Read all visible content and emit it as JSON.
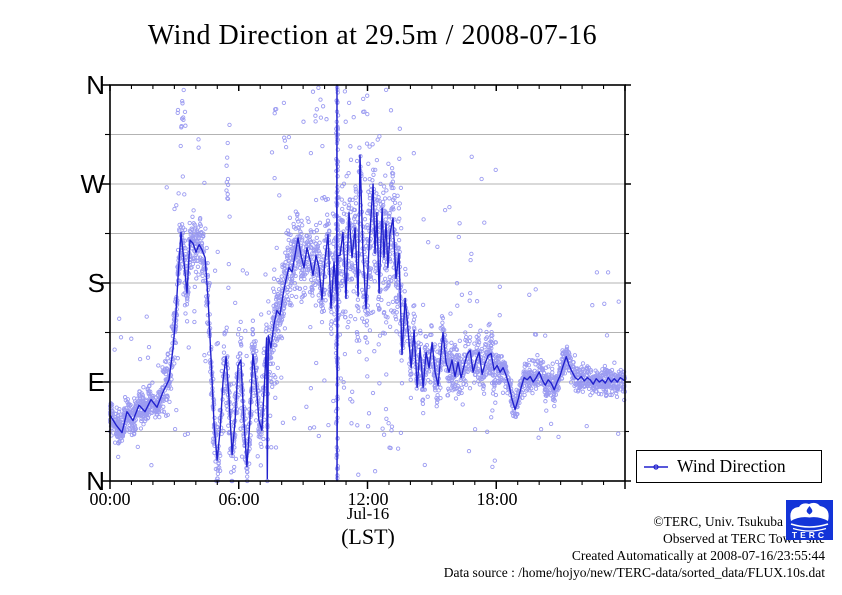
{
  "title": "Wind Direction at 29.5m / 2008-07-16",
  "colors": {
    "scatter": "#8b8bef",
    "mean_line": "#2121cd",
    "grid": "#b3b3b3",
    "axis": "#000000",
    "logo_blue": "#1334d8"
  },
  "axes": {
    "y": {
      "labels": [
        "N",
        "W",
        "S",
        "E",
        "N"
      ],
      "label_degrees": [
        360,
        270,
        180,
        90,
        0
      ],
      "minor_step_degrees": 45
    },
    "x": {
      "tick_labels": [
        "00:00",
        "06:00",
        "12:00",
        "18:00"
      ],
      "tick_hours": [
        0,
        6,
        12,
        18
      ],
      "minor_step_hours": 1,
      "range_hours": [
        0,
        24
      ],
      "date_label": "Jul-16",
      "unit_label": "(LST)"
    }
  },
  "legend": {
    "label": "Wind Direction"
  },
  "footer": {
    "line1": "©TERC, Univ. Tsukuba",
    "line2": "Observed at TERC Tower site",
    "line3": "Created Automatically at 2008-07-16/23:55:44",
    "line4": "Data source : /home/hojyo/new/TERC-data/sorted_data/FLUX.10s.dat"
  },
  "logo": {
    "text": "TERC"
  },
  "chart_data": {
    "type": "scatter",
    "title": "Wind Direction at 29.5m / 2008-07-16",
    "xlabel": "(LST)",
    "xlabel_date": "Jul-16",
    "xlim_hours": [
      0,
      24
    ],
    "ylim_degrees": [
      0,
      360
    ],
    "y_tick_labels": [
      "N",
      "W",
      "S",
      "E",
      "N"
    ],
    "grid": true,
    "grid_interval_degrees": 45,
    "legend_entries": [
      "Wind Direction"
    ],
    "legend_position": "outside-bottom-right",
    "series": [
      {
        "name": "Wind Direction 10s samples",
        "style": "open-circle-scatter",
        "approximation": "procedurally generated around mean line",
        "generation": {
          "seed": 42,
          "segments": [
            {
              "t0": 0.0,
              "t1": 2.5,
              "n": 420,
              "spread": 14,
              "outlier_frac": 0.05,
              "outlier_lo": 5,
              "outlier_hi": 160
            },
            {
              "t0": 2.5,
              "t1": 4.5,
              "n": 350,
              "spread": 26,
              "outlier_frac": 0.09,
              "outlier_lo": 20,
              "outlier_hi": 355
            },
            {
              "t0": 4.5,
              "t1": 7.5,
              "n": 520,
              "spread": 30,
              "outlier_frac": 0.08,
              "outlier_lo": 2,
              "outlier_hi": 210
            },
            {
              "t0": 7.5,
              "t1": 10.5,
              "n": 560,
              "spread": 32,
              "outlier_frac": 0.12,
              "outlier_lo": 30,
              "outlier_hi": 358
            },
            {
              "t0": 10.5,
              "t1": 13.6,
              "n": 640,
              "spread": 55,
              "outlier_frac": 0.16,
              "outlier_lo": 2,
              "outlier_hi": 358
            },
            {
              "t0": 13.6,
              "t1": 18.0,
              "n": 640,
              "spread": 24,
              "outlier_frac": 0.07,
              "outlier_lo": 10,
              "outlier_hi": 300
            },
            {
              "t0": 18.0,
              "t1": 24.0,
              "n": 760,
              "spread": 13,
              "outlier_frac": 0.035,
              "outlier_lo": 30,
              "outlier_hi": 200
            }
          ],
          "columns": [
            {
              "t": 10.58,
              "n": 100,
              "lo": 2,
              "hi": 358,
              "jitter": 0.05
            },
            {
              "t": 5.5,
              "n": 12,
              "lo": 240,
              "hi": 350,
              "jitter": 0.08
            },
            {
              "t": 3.42,
              "n": 9,
              "lo": 320,
              "hi": 356,
              "jitter": 0.1
            }
          ]
        }
      },
      {
        "name": "Wind Direction running mean",
        "style": "line",
        "points_hour_degree": [
          [
            0,
            60
          ],
          [
            0.28,
            51
          ],
          [
            0.56,
            44
          ],
          [
            0.79,
            63
          ],
          [
            1.07,
            55
          ],
          [
            1.35,
            69
          ],
          [
            1.63,
            63
          ],
          [
            1.91,
            74
          ],
          [
            2.19,
            67
          ],
          [
            2.47,
            81
          ],
          [
            2.75,
            92
          ],
          [
            2.94,
            121
          ],
          [
            3.08,
            155
          ],
          [
            3.17,
            185
          ],
          [
            3.31,
            226
          ],
          [
            3.45,
            199
          ],
          [
            3.59,
            171
          ],
          [
            3.73,
            219
          ],
          [
            3.87,
            216
          ],
          [
            4.01,
            208
          ],
          [
            4.15,
            215
          ],
          [
            4.29,
            210
          ],
          [
            4.43,
            203
          ],
          [
            4.57,
            165
          ],
          [
            4.71,
            110
          ],
          [
            4.85,
            51
          ],
          [
            4.99,
            19
          ],
          [
            5.13,
            46
          ],
          [
            5.27,
            92
          ],
          [
            5.41,
            113
          ],
          [
            5.55,
            74
          ],
          [
            5.69,
            24
          ],
          [
            5.83,
            55
          ],
          [
            5.97,
            105
          ],
          [
            6.1,
            110
          ],
          [
            6.24,
            55
          ],
          [
            6.38,
            13
          ],
          [
            6.52,
            55
          ],
          [
            6.66,
            115
          ],
          [
            6.8,
            92
          ],
          [
            6.94,
            55
          ],
          [
            7.08,
            46
          ],
          [
            7.22,
            96
          ],
          [
            7.3,
            130
          ],
          [
            7.33,
            2
          ],
          [
            7.38,
            132
          ],
          [
            7.5,
            121
          ],
          [
            7.64,
            142
          ],
          [
            7.78,
            155
          ],
          [
            7.92,
            151
          ],
          [
            8.06,
            169
          ],
          [
            8.2,
            183
          ],
          [
            8.34,
            194
          ],
          [
            8.48,
            190
          ],
          [
            8.62,
            205
          ],
          [
            8.76,
            221
          ],
          [
            8.9,
            205
          ],
          [
            9.04,
            194
          ],
          [
            9.18,
            212
          ],
          [
            9.32,
            201
          ],
          [
            9.46,
            187
          ],
          [
            9.6,
            205
          ],
          [
            9.74,
            194
          ],
          [
            9.88,
            165
          ],
          [
            10.02,
            201
          ],
          [
            10.16,
            224
          ],
          [
            10.3,
            157
          ],
          [
            10.44,
            199
          ],
          [
            10.56,
            170
          ],
          [
            10.58,
            360
          ],
          [
            10.58,
            0
          ],
          [
            10.62,
            205
          ],
          [
            10.72,
            205
          ],
          [
            10.86,
            226
          ],
          [
            11,
            166
          ],
          [
            11.14,
            244
          ],
          [
            11.28,
            203
          ],
          [
            11.42,
            230
          ],
          [
            11.56,
            168
          ],
          [
            11.65,
            296
          ],
          [
            11.79,
            207
          ],
          [
            11.93,
            157
          ],
          [
            12.07,
            212
          ],
          [
            12.16,
            239
          ],
          [
            12.26,
            270
          ],
          [
            12.35,
            207
          ],
          [
            12.44,
            244
          ],
          [
            12.54,
            171
          ],
          [
            12.68,
            248
          ],
          [
            12.77,
            203
          ],
          [
            12.86,
            234
          ],
          [
            12.95,
            194
          ],
          [
            13.05,
            225
          ],
          [
            13.19,
            239
          ],
          [
            13.33,
            184
          ],
          [
            13.47,
            207
          ],
          [
            13.61,
            115
          ],
          [
            13.75,
            166
          ],
          [
            13.89,
            137
          ],
          [
            14.03,
            103
          ],
          [
            14.17,
            137
          ],
          [
            14.31,
            85
          ],
          [
            14.45,
            121
          ],
          [
            14.59,
            85
          ],
          [
            14.73,
            117
          ],
          [
            14.87,
            103
          ],
          [
            15.01,
            126
          ],
          [
            15.15,
            99
          ],
          [
            15.29,
            87
          ],
          [
            15.43,
            117
          ],
          [
            15.52,
            135
          ],
          [
            15.66,
            108
          ],
          [
            15.8,
            99
          ],
          [
            15.94,
            110
          ],
          [
            16.08,
            95
          ],
          [
            16.22,
            108
          ],
          [
            16.36,
            94
          ],
          [
            16.5,
            105
          ],
          [
            16.64,
            115
          ],
          [
            16.78,
            119
          ],
          [
            16.92,
            99
          ],
          [
            17.06,
            110
          ],
          [
            17.2,
            117
          ],
          [
            17.34,
            97
          ],
          [
            17.48,
            107
          ],
          [
            17.62,
            114
          ],
          [
            17.76,
            116
          ],
          [
            17.9,
            101
          ],
          [
            18.04,
            105
          ],
          [
            18.18,
            99
          ],
          [
            18.32,
            103
          ],
          [
            18.46,
            96
          ],
          [
            18.6,
            87
          ],
          [
            18.74,
            74
          ],
          [
            18.88,
            65
          ],
          [
            19.02,
            74
          ],
          [
            19.16,
            85
          ],
          [
            19.3,
            94
          ],
          [
            19.44,
            92
          ],
          [
            19.58,
            95
          ],
          [
            19.72,
            90
          ],
          [
            19.86,
            94
          ],
          [
            20,
            99
          ],
          [
            20.14,
            92
          ],
          [
            20.28,
            87
          ],
          [
            20.42,
            92
          ],
          [
            20.56,
            89
          ],
          [
            20.7,
            83
          ],
          [
            20.84,
            90
          ],
          [
            20.98,
            96
          ],
          [
            21.12,
            105
          ],
          [
            21.26,
            113
          ],
          [
            21.4,
            105
          ],
          [
            21.54,
            99
          ],
          [
            21.68,
            94
          ],
          [
            21.82,
            92
          ],
          [
            21.96,
            95
          ],
          [
            22.1,
            91
          ],
          [
            22.24,
            94
          ],
          [
            22.38,
            92
          ],
          [
            22.52,
            88
          ],
          [
            22.66,
            93
          ],
          [
            22.8,
            90
          ],
          [
            22.94,
            92
          ],
          [
            23.08,
            89
          ],
          [
            23.22,
            94
          ],
          [
            23.36,
            90
          ],
          [
            23.5,
            93
          ],
          [
            23.64,
            90
          ],
          [
            23.78,
            94
          ],
          [
            23.92,
            92
          ],
          [
            24,
            91
          ]
        ]
      }
    ]
  }
}
